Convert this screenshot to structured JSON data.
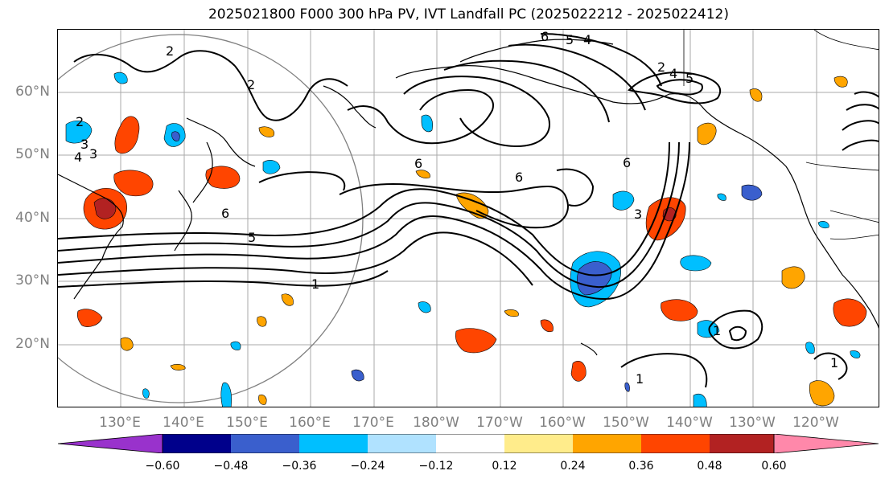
{
  "title": "2025021800 F000 300 hPa PV, IVT Landfall PC (2025022212 - 2025022412)",
  "lat_labels": [
    "60°N",
    "50°N",
    "40°N",
    "30°N",
    "20°N"
  ],
  "lon_labels": [
    "130°E",
    "140°E",
    "150°E",
    "160°E",
    "170°E",
    "180°W",
    "170°W",
    "160°W",
    "150°W",
    "140°W",
    "130°W",
    "120°W"
  ],
  "contour_labels": [
    "6",
    "5",
    "4",
    "2",
    "2",
    "3",
    "4",
    "6",
    "6",
    "6",
    "6",
    "5",
    "1",
    "3",
    "3",
    "2",
    "1",
    "1",
    "1",
    "2",
    "4",
    "5"
  ],
  "colorbar": {
    "ticks": [
      "−0.60",
      "−0.48",
      "−0.36",
      "−0.24",
      "−0.12",
      "0.12",
      "0.24",
      "0.36",
      "0.48",
      "0.60"
    ],
    "colors": [
      "#9932cc",
      "#00008b",
      "#3a5fcd",
      "#00bfff",
      "#b0e2ff",
      "#ffffff",
      "#ffec8b",
      "#ffa500",
      "#ff4500",
      "#b22222",
      "#ff88aa"
    ]
  }
}
